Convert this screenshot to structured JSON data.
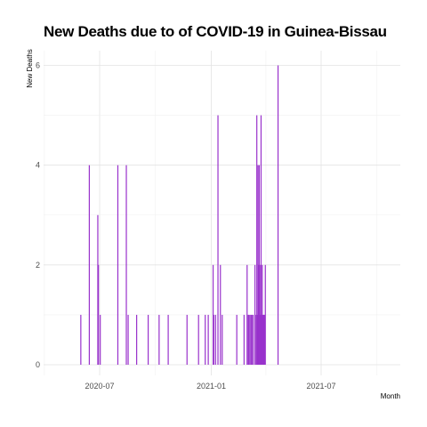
{
  "chart_data": {
    "type": "bar",
    "title": "New Deaths due to of COVID-19 in Guinea-Bissau",
    "xlabel": "Month",
    "ylabel": "New Deaths",
    "x_tick_labels": [
      "2020-07",
      "2021-01",
      "2021-07"
    ],
    "y_ticks": [
      0,
      2,
      4,
      6
    ],
    "ylim": [
      0,
      6
    ],
    "xlim": [
      "2020-04-01",
      "2021-10-01"
    ],
    "bar_color": "#9932CC",
    "grid": true,
    "series": [
      {
        "x": [
          "2020-05-31",
          "2020-06-14",
          "2020-06-28",
          "2020-06-29",
          "2020-07-02",
          "2020-07-31",
          "2020-08-14",
          "2020-08-17",
          "2020-08-31",
          "2020-09-19",
          "2020-10-07",
          "2020-10-22",
          "2020-11-22",
          "2020-12-11",
          "2020-12-22",
          "2020-12-27",
          "2021-01-04",
          "2021-01-05",
          "2021-01-08",
          "2021-01-12",
          "2021-01-16",
          "2021-01-19",
          "2021-02-12",
          "2021-02-24",
          "2021-03-01",
          "2021-03-03",
          "2021-03-04",
          "2021-03-06",
          "2021-03-08",
          "2021-03-10",
          "2021-03-11",
          "2021-03-14",
          "2021-03-16",
          "2021-03-17",
          "2021-03-18",
          "2021-03-19",
          "2021-03-20",
          "2021-03-21",
          "2021-03-22",
          "2021-03-23",
          "2021-03-24",
          "2021-03-25",
          "2021-03-26",
          "2021-03-27",
          "2021-03-28",
          "2021-03-29",
          "2021-03-30",
          "2021-03-31",
          "2021-04-21"
        ],
        "y": [
          1,
          4,
          3,
          2,
          1,
          4,
          4,
          1,
          1,
          1,
          1,
          1,
          1,
          1,
          1,
          1,
          2,
          1,
          1,
          5,
          2,
          1,
          1,
          1,
          2,
          1,
          1,
          1,
          1,
          1,
          1,
          2,
          1,
          5,
          1,
          4,
          2,
          4,
          1,
          2,
          5,
          1,
          2,
          1,
          1,
          1,
          1,
          2,
          6
        ]
      }
    ]
  }
}
